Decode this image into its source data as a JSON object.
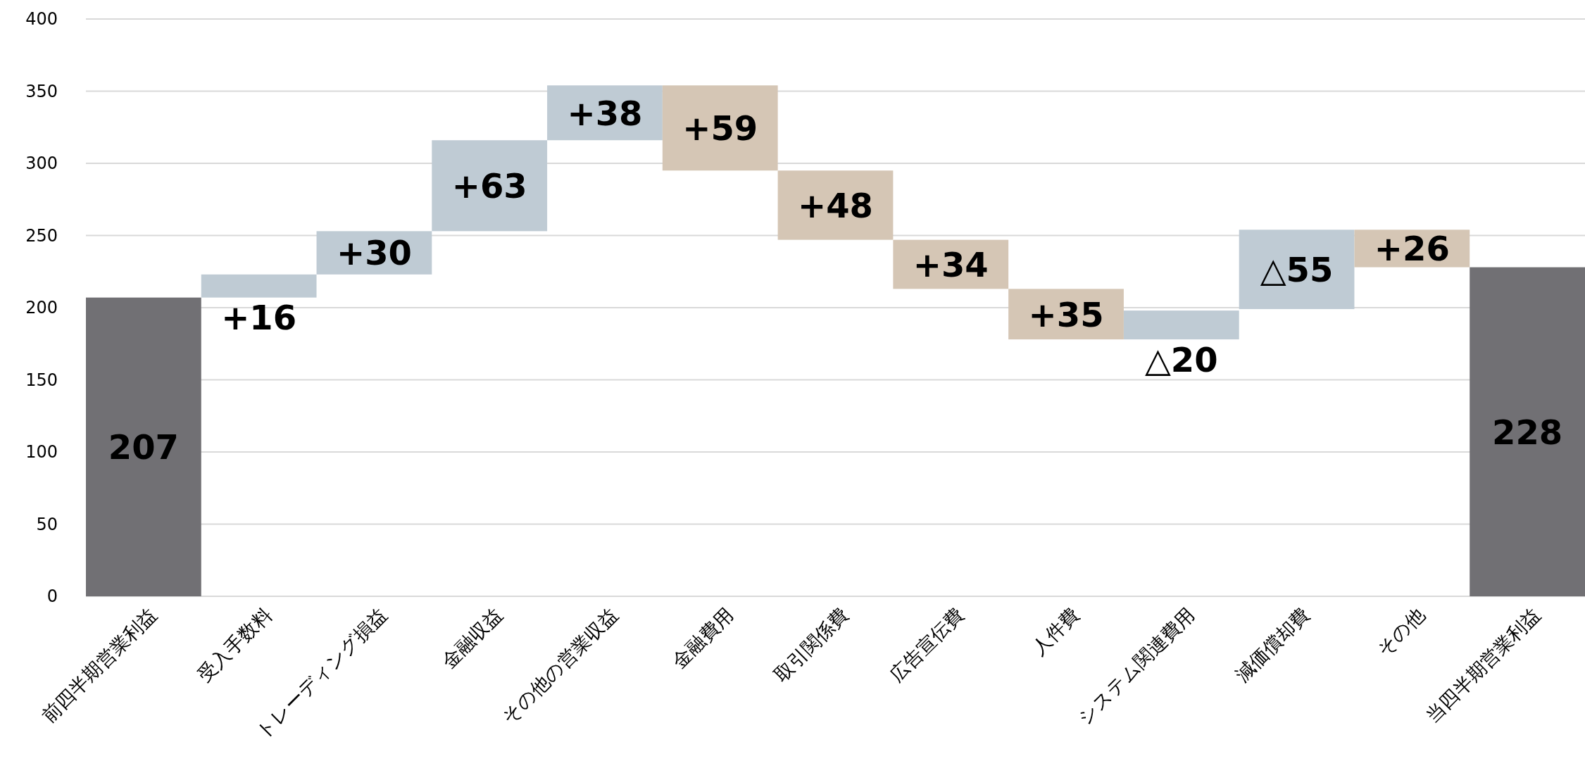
{
  "chart_data": {
    "type": "bar",
    "categories": [
      "前四半期営業利益",
      "受入手数料",
      "トレーディング損益",
      "金融収益",
      "その他の営業収益",
      "金融費用",
      "取引関係費",
      "広告宣伝費",
      "人件費",
      "システム関連費用",
      "減価償却費",
      "その他",
      "当四半期営業利益"
    ],
    "values": [
      207,
      16,
      30,
      63,
      38,
      -59,
      -48,
      -34,
      -35,
      20,
      55,
      -26,
      228
    ],
    "base": [
      0,
      207,
      223,
      253,
      316,
      354,
      295,
      247,
      213,
      178,
      199,
      254,
      0
    ],
    "colors": [
      "#717074",
      "#bfcbd4",
      "#bfcbd4",
      "#bfcbd4",
      "#bfcbd4",
      "#d5c6b5",
      "#d5c6b5",
      "#d5c6b5",
      "#d5c6b5",
      "#bfcbd4",
      "#bfcbd4",
      "#d5c6b5",
      "#717074"
    ],
    "value_labels": [
      "207",
      "+16",
      "+30",
      "+63",
      "+38",
      "+59",
      "+48",
      "+34",
      "+35",
      "△20",
      "△55",
      "+26",
      "228"
    ],
    "ylim": [
      0,
      400
    ],
    "yticks": [
      0,
      50,
      100,
      150,
      200,
      250,
      300,
      350,
      400
    ],
    "grid": "y"
  }
}
